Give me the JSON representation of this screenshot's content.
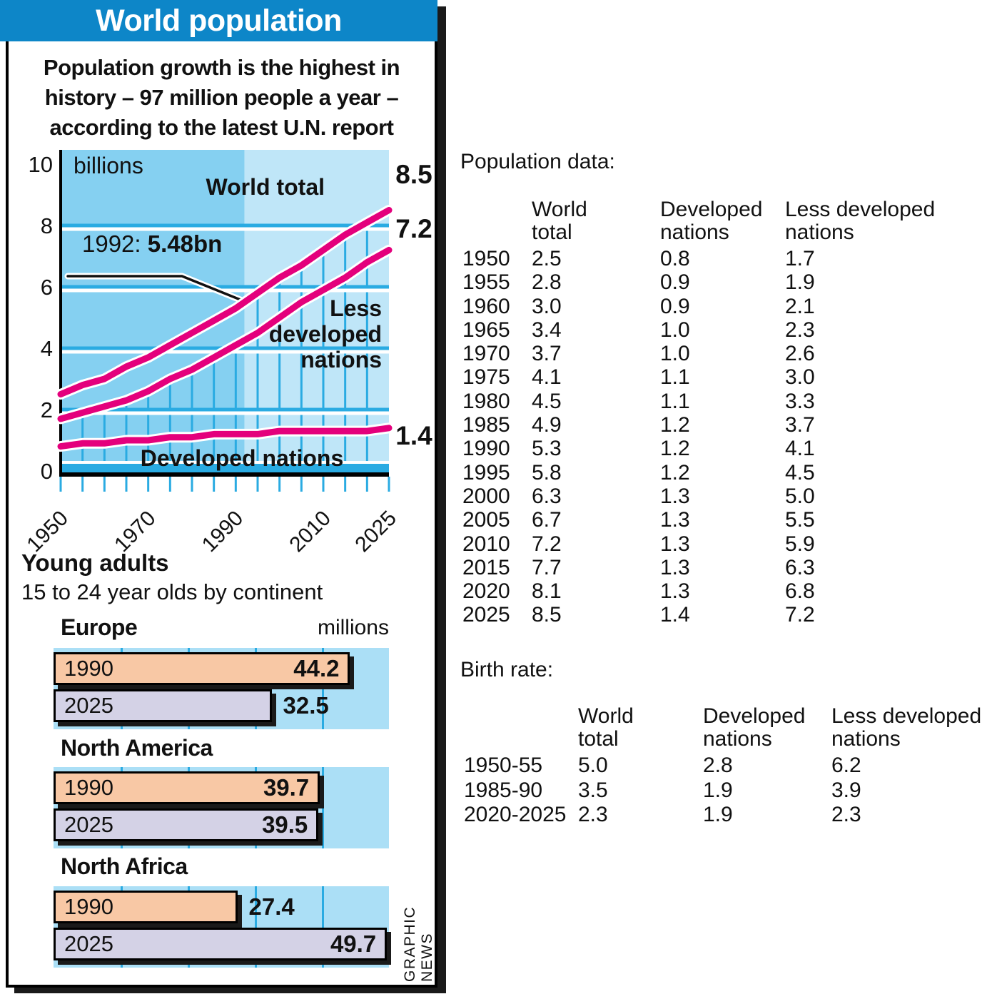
{
  "banner": {
    "title": "World population"
  },
  "subtitle_lines": [
    "Population growth is the highest in",
    "history – 97 million people a year –",
    "according to the latest U.N. report"
  ],
  "credit": "GRAPHIC NEWS",
  "colors": {
    "banner_blue": "#0d86c8",
    "chart_bg_left": "#85d0f1",
    "chart_bg_right": "#bfe6f8",
    "grid_cyan": "#2aabe2",
    "line_magenta": "#e4007c",
    "axis_black": "#1a1a1a",
    "bar_1990": "#f8c8a5",
    "bar_2025": "#d4d2e6",
    "band_bg": "#abdff6"
  },
  "chart_data": [
    {
      "type": "line",
      "unit_label": "billions",
      "x": [
        1950,
        1955,
        1960,
        1965,
        1970,
        1975,
        1980,
        1985,
        1990,
        1995,
        2000,
        2005,
        2010,
        2015,
        2020,
        2025
      ],
      "x_tick_labels": [
        "1950",
        "1970",
        "1990",
        "2010",
        "2025"
      ],
      "x_tick_years": [
        1950,
        1970,
        1990,
        2010,
        2025
      ],
      "ylim": [
        0,
        10
      ],
      "y_ticks": [
        "0",
        "2",
        "4",
        "6",
        "8",
        "10"
      ],
      "era_split_year": 1992,
      "series": [
        {
          "name": "World total",
          "values": [
            2.5,
            2.8,
            3.0,
            3.4,
            3.7,
            4.1,
            4.5,
            4.9,
            5.3,
            5.8,
            6.3,
            6.7,
            7.2,
            7.7,
            8.1,
            8.5
          ],
          "end_label": "8.5"
        },
        {
          "name": "Less developed nations",
          "label_lines": [
            "Less",
            "developed",
            "nations"
          ],
          "values": [
            1.7,
            1.9,
            2.1,
            2.3,
            2.6,
            3.0,
            3.3,
            3.7,
            4.1,
            4.5,
            5.0,
            5.5,
            5.9,
            6.3,
            6.8,
            7.2
          ],
          "end_label": "7.2"
        },
        {
          "name": "Developed nations",
          "values": [
            0.8,
            0.9,
            0.9,
            1.0,
            1.0,
            1.1,
            1.1,
            1.2,
            1.2,
            1.2,
            1.3,
            1.3,
            1.3,
            1.3,
            1.3,
            1.4
          ],
          "end_label": "1.4"
        }
      ],
      "annotation": {
        "prefix": "1992: ",
        "bold": "5.48bn",
        "year": 1992,
        "value": 5.48
      }
    },
    {
      "type": "bar",
      "title": "Young adults",
      "subtitle": "15 to 24 year olds by continent",
      "unit_label": "millions",
      "xlim": [
        0,
        50
      ],
      "gridline_step": 10,
      "groups": [
        {
          "name": "Europe",
          "bars": [
            {
              "label": "1990",
              "value": 44.2
            },
            {
              "label": "2025",
              "value": 32.5
            }
          ]
        },
        {
          "name": "North America",
          "bars": [
            {
              "label": "1990",
              "value": 39.7
            },
            {
              "label": "2025",
              "value": 39.5
            }
          ]
        },
        {
          "name": "North Africa",
          "bars": [
            {
              "label": "1990",
              "value": 27.4
            },
            {
              "label": "2025",
              "value": 49.7
            }
          ]
        }
      ]
    }
  ],
  "population_table": {
    "title": "Population data:",
    "col_headers": [
      "World\ntotal",
      "Developed\nnations",
      "Less developed\nnations"
    ],
    "rows": [
      [
        "1950",
        "2.5",
        "0.8",
        "1.7"
      ],
      [
        "1955",
        "2.8",
        "0.9",
        "1.9"
      ],
      [
        "1960",
        "3.0",
        "0.9",
        "2.1"
      ],
      [
        "1965",
        "3.4",
        "1.0",
        "2.3"
      ],
      [
        "1970",
        "3.7",
        "1.0",
        "2.6"
      ],
      [
        "1975",
        "4.1",
        "1.1",
        "3.0"
      ],
      [
        "1980",
        "4.5",
        "1.1",
        "3.3"
      ],
      [
        "1985",
        "4.9",
        "1.2",
        "3.7"
      ],
      [
        "1990",
        "5.3",
        "1.2",
        "4.1"
      ],
      [
        "1995",
        "5.8",
        "1.2",
        "4.5"
      ],
      [
        "2000",
        "6.3",
        "1.3",
        "5.0"
      ],
      [
        "2005",
        "6.7",
        "1.3",
        "5.5"
      ],
      [
        "2010",
        "7.2",
        "1.3",
        "5.9"
      ],
      [
        "2015",
        "7.7",
        "1.3",
        "6.3"
      ],
      [
        "2020",
        "8.1",
        "1.3",
        "6.8"
      ],
      [
        "2025",
        "8.5",
        "1.4",
        "7.2"
      ]
    ]
  },
  "birth_rate_table": {
    "title": "Birth rate:",
    "col_headers": [
      "World\ntotal",
      "Developed\nnations",
      "Less developed\nnations"
    ],
    "rows": [
      [
        "1950-55",
        "5.0",
        "2.8",
        "6.2"
      ],
      [
        "1985-90",
        "3.5",
        "1.9",
        "3.9"
      ],
      [
        "2020-2025",
        "2.3",
        "1.9",
        "2.3"
      ]
    ]
  }
}
